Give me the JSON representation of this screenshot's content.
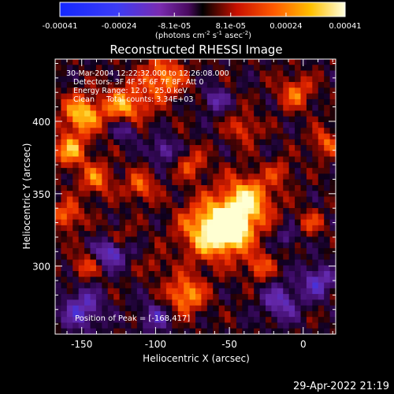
{
  "colorbar": {
    "ticks": [
      "-0.00041",
      "-0.00024",
      "-8.1e-05",
      "8.1e-05",
      "0.00024",
      "0.00041"
    ],
    "tick_values": [
      -0.00041,
      -0.00024,
      -8.1e-05,
      8.1e-05,
      0.00024,
      0.00041
    ],
    "range": [
      -0.00041,
      0.00041
    ],
    "units_main": "(photons cm",
    "units_exp1": "-2",
    "units_mid": " s",
    "units_exp2": "-1",
    "units_mid2": " asec",
    "units_exp3": "-2",
    "units_end": ")"
  },
  "annotations": {
    "time_range": "30-Mar-2004 12:22:32.000 to 12:26:08.000",
    "detectors": "Detectors: 3F 4F 5F 6F 7F 8F, Att 0",
    "energy": "Energy Range: 12.0 - 25.0 keV",
    "clean": "Clean     Total counts: 3.34E+03",
    "peak": "Position of Peak = [-168,417]"
  },
  "footer": {
    "timestamp": "29-Apr-2022 21:19"
  },
  "chart_data": {
    "type": "heatmap",
    "title": "Reconstructed RHESSI Image",
    "xlabel": "Heliocentric X (arcsec)",
    "ylabel": "Heliocentric Y (arcsec)",
    "xlim": [
      -168,
      22
    ],
    "ylim": [
      253,
      443
    ],
    "x_ticks": [
      -150,
      -100,
      -50,
      0
    ],
    "x_tick_labels": [
      "-150",
      "-100",
      "-50",
      "0"
    ],
    "y_ticks": [
      300,
      350,
      400
    ],
    "y_tick_labels": [
      "300",
      "350",
      "400"
    ],
    "colormap": "rainbow-to-hot",
    "colorscale_range": [
      -0.00041,
      0.00041
    ],
    "grid_cols": 48,
    "grid_rows": 48,
    "peak": [
      -168,
      417
    ],
    "blobs": [
      {
        "x": -62,
        "y": 325,
        "sigma": 14,
        "amp": 1.0
      },
      {
        "x": -38,
        "y": 345,
        "sigma": 12,
        "amp": 0.9
      },
      {
        "x": -48,
        "y": 325,
        "sigma": 9,
        "amp": 0.85
      },
      {
        "x": -150,
        "y": 405,
        "sigma": 9,
        "amp": 0.85
      },
      {
        "x": -120,
        "y": 410,
        "sigma": 10,
        "amp": 0.75
      },
      {
        "x": -95,
        "y": 430,
        "sigma": 10,
        "amp": 0.7
      },
      {
        "x": -158,
        "y": 380,
        "sigma": 8,
        "amp": 0.7
      },
      {
        "x": -140,
        "y": 360,
        "sigma": 8,
        "amp": 0.55
      },
      {
        "x": -110,
        "y": 355,
        "sigma": 7,
        "amp": 0.55
      },
      {
        "x": -160,
        "y": 335,
        "sigma": 7,
        "amp": 0.6
      },
      {
        "x": -148,
        "y": 300,
        "sigma": 6,
        "amp": 0.45
      },
      {
        "x": -80,
        "y": 280,
        "sigma": 9,
        "amp": 0.75
      },
      {
        "x": -30,
        "y": 300,
        "sigma": 7,
        "amp": 0.5
      },
      {
        "x": 5,
        "y": 330,
        "sigma": 6,
        "amp": 0.4
      },
      {
        "x": -5,
        "y": 420,
        "sigma": 8,
        "amp": 0.55
      },
      {
        "x": -40,
        "y": 395,
        "sigma": 7,
        "amp": 0.45
      },
      {
        "x": 15,
        "y": 385,
        "sigma": 7,
        "amp": 0.5
      },
      {
        "x": -15,
        "y": 365,
        "sigma": 6,
        "amp": 0.35
      },
      {
        "x": -75,
        "y": 370,
        "sigma": 7,
        "amp": 0.45
      },
      {
        "x": -125,
        "y": 320,
        "sigma": 6,
        "amp": 0.35
      },
      {
        "x": -100,
        "y": 300,
        "sigma": 5,
        "amp": 0.3
      },
      {
        "x": -120,
        "y": 395,
        "sigma": 6,
        "amp": -0.6
      },
      {
        "x": -130,
        "y": 310,
        "sigma": 7,
        "amp": -0.75
      },
      {
        "x": -95,
        "y": 380,
        "sigma": 6,
        "amp": -0.55
      },
      {
        "x": -150,
        "y": 270,
        "sigma": 10,
        "amp": -0.6
      },
      {
        "x": -60,
        "y": 415,
        "sigma": 6,
        "amp": -0.5
      },
      {
        "x": -15,
        "y": 275,
        "sigma": 9,
        "amp": -0.55
      },
      {
        "x": 10,
        "y": 290,
        "sigma": 8,
        "amp": -0.6
      },
      {
        "x": -10,
        "y": 320,
        "sigma": 5,
        "amp": -0.4
      },
      {
        "x": -100,
        "y": 265,
        "sigma": 8,
        "amp": -0.45
      }
    ]
  }
}
